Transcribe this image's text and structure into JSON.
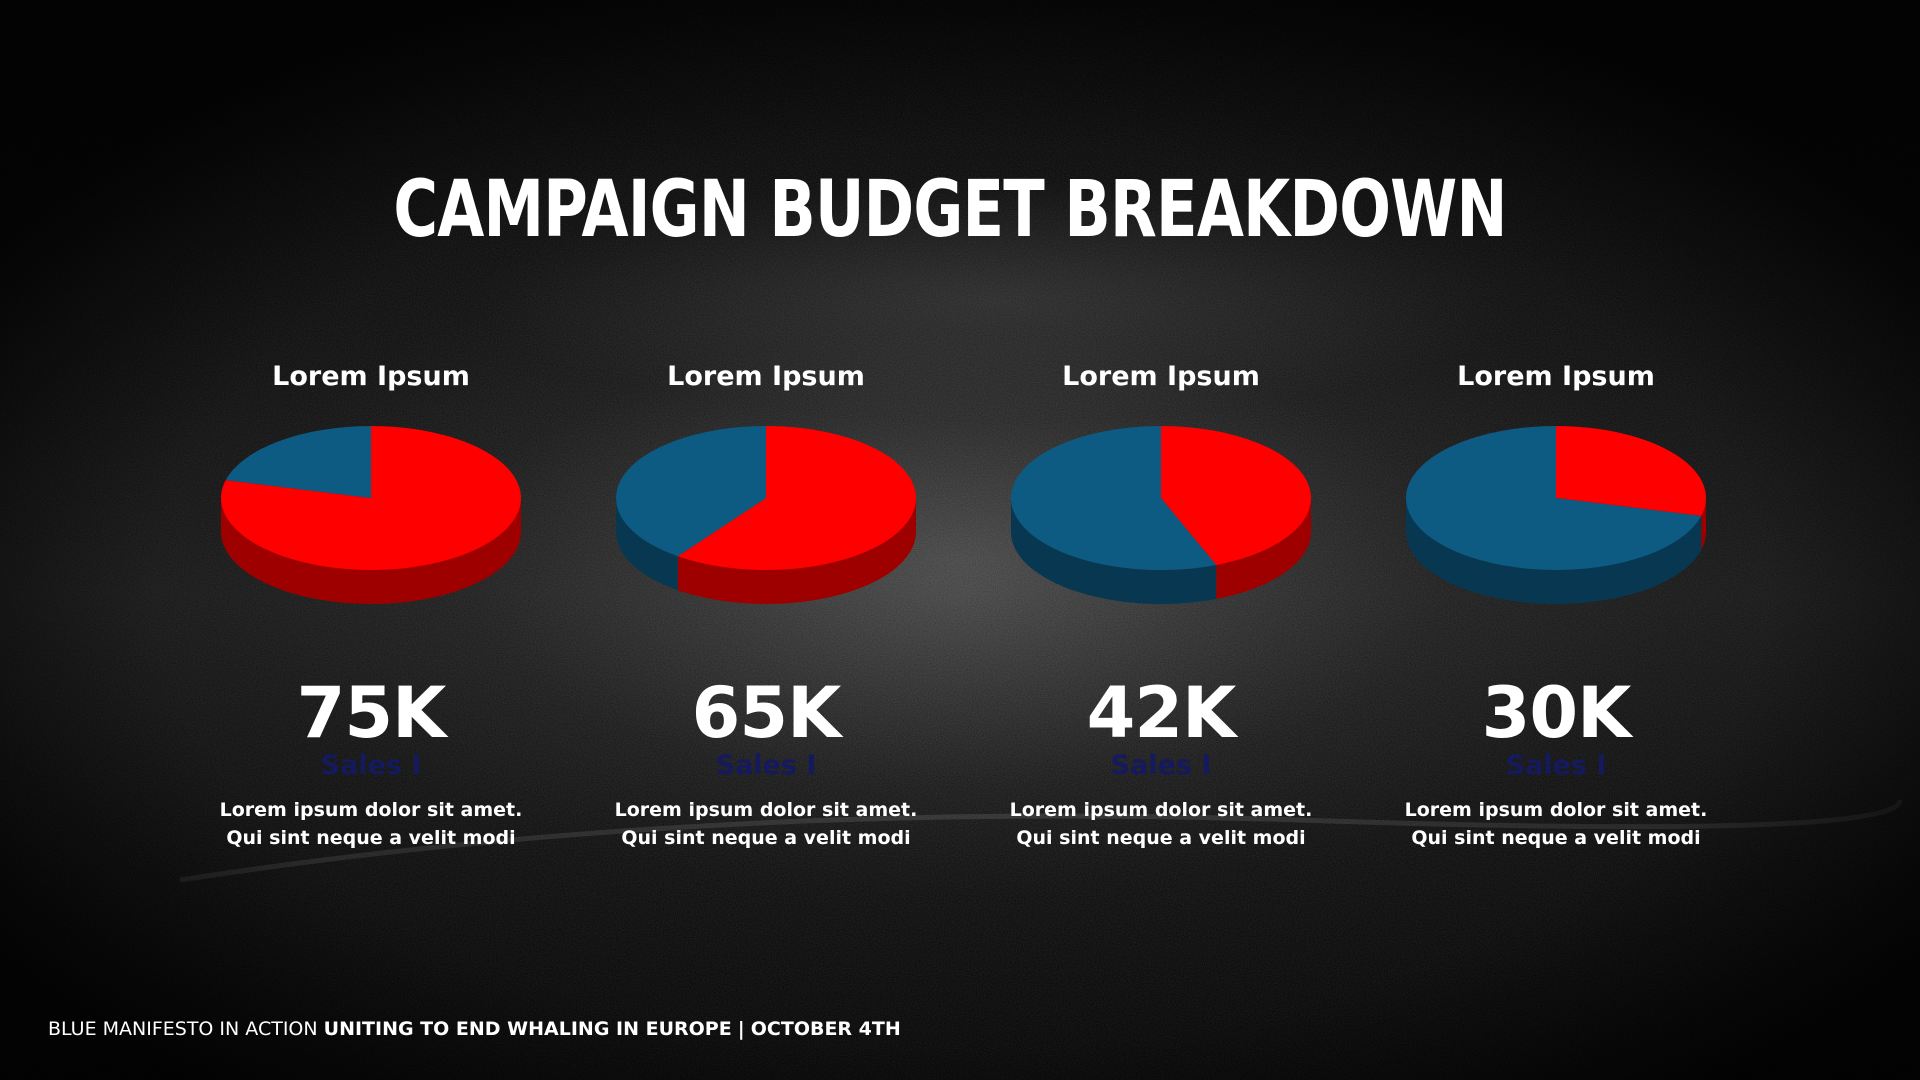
{
  "title": "CAMPAIGN BUDGET BREAKDOWN",
  "footer": {
    "prefix": "BLUE MANIFESTO IN ACTION",
    "event": "UNITING TO END WHALING IN EUROPE",
    "separator": "|",
    "date": "OCTOBER 4TH"
  },
  "colors": {
    "red": "#ff0000",
    "blue": "#0d5a82",
    "sublabel": "#15195e",
    "text": "#ffffff"
  },
  "chart_data": [
    {
      "type": "pie",
      "title": "Lorem Ipsum",
      "slices": [
        {
          "color": "red",
          "value": 0.79
        },
        {
          "color": "blue",
          "value": 0.21
        }
      ],
      "value_label": "75K",
      "sublabel": "Sales I",
      "description": [
        "Lorem ipsum dolor sit amet.",
        "Qui sint neque a velit modi"
      ]
    },
    {
      "type": "pie",
      "title": "Lorem Ipsum",
      "slices": [
        {
          "color": "red",
          "value": 0.6
        },
        {
          "color": "blue",
          "value": 0.4
        }
      ],
      "value_label": "65K",
      "sublabel": "Sales I",
      "description": [
        "Lorem ipsum dolor sit amet.",
        "Qui sint neque a velit modi"
      ]
    },
    {
      "type": "pie",
      "title": "Lorem Ipsum",
      "slices": [
        {
          "color": "red",
          "value": 0.44
        },
        {
          "color": "blue",
          "value": 0.56
        }
      ],
      "value_label": "42K",
      "sublabel": "Sales I",
      "description": [
        "Lorem ipsum dolor sit amet.",
        "Qui sint neque a velit modi"
      ]
    },
    {
      "type": "pie",
      "title": "Lorem Ipsum",
      "slices": [
        {
          "color": "red",
          "value": 0.29
        },
        {
          "color": "blue",
          "value": 0.71
        }
      ],
      "value_label": "30K",
      "sublabel": "Sales I",
      "description": [
        "Lorem ipsum dolor sit amet.",
        "Qui sint neque a velit modi"
      ]
    }
  ]
}
